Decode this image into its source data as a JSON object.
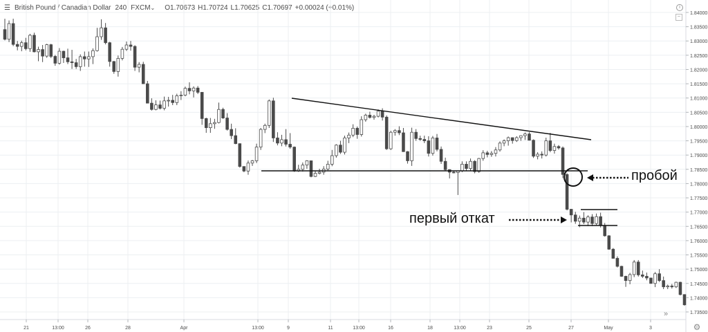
{
  "header": {
    "menu_icon": "menu-icon",
    "symbol": "British Pound / Canadian Dollar",
    "interval": "240",
    "exchange": "FXCM",
    "dropdown_icon": "chevron-down-icon",
    "open": "O1.70673",
    "high": "H1.70724",
    "low": "L1.70625",
    "close": "C1.70697",
    "change": "+0.00024 (+0.01%)"
  },
  "icons": {
    "info": "info-icon",
    "collapse": "collapse-icon",
    "scroll": "scroll-right-icon",
    "settings": "gear-icon"
  },
  "annotations": {
    "breakout": "пробой",
    "first_pullback": "первый откат"
  },
  "colors": {
    "bull": "#ffffff",
    "bear": "#4a4a4a",
    "wick": "#4a4a4a",
    "grid": "#eceff2",
    "trendline": "#111111"
  },
  "chart_data": {
    "type": "candlestick",
    "ylim": [
      1.725,
      1.8425
    ],
    "y_ticks": [
      "1.84000",
      "1.83500",
      "1.83000",
      "1.82500",
      "1.82000",
      "1.81500",
      "1.81000",
      "1.80500",
      "1.80000",
      "1.79500",
      "1.79000",
      "1.78500",
      "1.78000",
      "1.77500",
      "1.77000",
      "1.76500",
      "1.76000",
      "1.75500",
      "1.75000",
      "1.74500",
      "1.74000",
      "1.73500"
    ],
    "x_ticks": [
      "21",
      "13:00",
      "26",
      "28",
      "Apr",
      "13:00",
      "9",
      "11",
      "13:00",
      "16",
      "18",
      "13:00",
      "23",
      "25",
      "27",
      "May",
      "3"
    ],
    "candles": [
      [
        1.834,
        1.8378,
        1.8302,
        1.8306
      ],
      [
        1.8306,
        1.8372,
        1.8296,
        1.8361
      ],
      [
        1.8361,
        1.8378,
        1.8282,
        1.8288
      ],
      [
        1.8288,
        1.83,
        1.8267,
        1.8281
      ],
      [
        1.8281,
        1.8301,
        1.8264,
        1.8294
      ],
      [
        1.8294,
        1.8311,
        1.8267,
        1.8273
      ],
      [
        1.8273,
        1.8325,
        1.8262,
        1.832
      ],
      [
        1.832,
        1.8329,
        1.826,
        1.8262
      ],
      [
        1.8262,
        1.828,
        1.8229,
        1.827
      ],
      [
        1.827,
        1.8286,
        1.8226,
        1.8247
      ],
      [
        1.8247,
        1.829,
        1.8241,
        1.8287
      ],
      [
        1.8287,
        1.829,
        1.824,
        1.8246
      ],
      [
        1.8246,
        1.8251,
        1.8213,
        1.8222
      ],
      [
        1.8222,
        1.8275,
        1.8217,
        1.8264
      ],
      [
        1.8264,
        1.8266,
        1.8223,
        1.8241
      ],
      [
        1.8241,
        1.8273,
        1.8219,
        1.8227
      ],
      [
        1.8227,
        1.8269,
        1.8202,
        1.8224
      ],
      [
        1.8224,
        1.8237,
        1.8202,
        1.821
      ],
      [
        1.821,
        1.8253,
        1.8195,
        1.8245
      ],
      [
        1.8245,
        1.8263,
        1.821,
        1.8237
      ],
      [
        1.8237,
        1.8263,
        1.8209,
        1.8245
      ],
      [
        1.8245,
        1.8274,
        1.8219,
        1.8266
      ],
      [
        1.8266,
        1.8346,
        1.8263,
        1.8315
      ],
      [
        1.8315,
        1.8376,
        1.8304,
        1.8346
      ],
      [
        1.8346,
        1.8363,
        1.8288,
        1.8294
      ],
      [
        1.8294,
        1.8297,
        1.821,
        1.8228
      ],
      [
        1.8228,
        1.823,
        1.8185,
        1.8193
      ],
      [
        1.8193,
        1.8249,
        1.8175,
        1.8239
      ],
      [
        1.8239,
        1.8279,
        1.8232,
        1.8271
      ],
      [
        1.8271,
        1.8298,
        1.8265,
        1.8286
      ],
      [
        1.8286,
        1.83,
        1.8266,
        1.8281
      ],
      [
        1.8281,
        1.8285,
        1.8195,
        1.8208
      ],
      [
        1.8208,
        1.8226,
        1.819,
        1.8218
      ],
      [
        1.8218,
        1.8227,
        1.8149,
        1.815
      ],
      [
        1.815,
        1.816,
        1.8082,
        1.8082
      ],
      [
        1.8082,
        1.8099,
        1.8056,
        1.806
      ],
      [
        1.806,
        1.8092,
        1.8057,
        1.8076
      ],
      [
        1.8076,
        1.8091,
        1.806,
        1.8064
      ],
      [
        1.8064,
        1.8105,
        1.8057,
        1.809
      ],
      [
        1.809,
        1.8104,
        1.807,
        1.8092
      ],
      [
        1.8092,
        1.8111,
        1.8075,
        1.8084
      ],
      [
        1.8084,
        1.8115,
        1.8075,
        1.8108
      ],
      [
        1.8108,
        1.8124,
        1.8093,
        1.811
      ],
      [
        1.811,
        1.814,
        1.8106,
        1.8134
      ],
      [
        1.8134,
        1.8155,
        1.8113,
        1.8125
      ],
      [
        1.8125,
        1.8141,
        1.8102,
        1.8135
      ],
      [
        1.8135,
        1.8142,
        1.8114,
        1.812
      ],
      [
        1.812,
        1.812,
        1.8006,
        1.8028
      ],
      [
        1.8028,
        1.8031,
        1.7978,
        1.7996
      ],
      [
        1.7996,
        1.803,
        1.7978,
        1.801
      ],
      [
        1.801,
        1.8027,
        1.7992,
        1.8014
      ],
      [
        1.8014,
        1.8084,
        1.8011,
        1.806
      ],
      [
        1.806,
        1.8066,
        1.8027,
        1.803
      ],
      [
        1.803,
        1.8047,
        1.7986,
        1.799
      ],
      [
        1.799,
        1.801,
        1.7956,
        1.7968
      ],
      [
        1.7968,
        1.7994,
        1.7938,
        1.794
      ],
      [
        1.794,
        1.7941,
        1.7856,
        1.786
      ],
      [
        1.786,
        1.786,
        1.784,
        1.7844
      ],
      [
        1.7844,
        1.7881,
        1.7831,
        1.7872
      ],
      [
        1.7872,
        1.7883,
        1.7862,
        1.788
      ],
      [
        1.788,
        1.794,
        1.7872,
        1.7928
      ],
      [
        1.7928,
        1.7995,
        1.7918,
        1.799
      ],
      [
        1.799,
        1.801,
        1.7977,
        1.8004
      ],
      [
        1.8004,
        1.8095,
        1.7995,
        1.809
      ],
      [
        1.809,
        1.8101,
        1.7946,
        1.796
      ],
      [
        1.796,
        1.798,
        1.7934,
        1.7942
      ],
      [
        1.7942,
        1.7971,
        1.7931,
        1.7954
      ],
      [
        1.7954,
        1.7991,
        1.793,
        1.7938
      ],
      [
        1.7938,
        1.7977,
        1.7922,
        1.7928
      ],
      [
        1.7928,
        1.793,
        1.7841,
        1.7844
      ],
      [
        1.7844,
        1.7866,
        1.7841,
        1.785
      ],
      [
        1.785,
        1.7874,
        1.7842,
        1.7865
      ],
      [
        1.7865,
        1.7882,
        1.7852,
        1.788
      ],
      [
        1.788,
        1.7879,
        1.7822,
        1.7825
      ],
      [
        1.7825,
        1.7844,
        1.7823,
        1.7836
      ],
      [
        1.7836,
        1.7852,
        1.7832,
        1.784
      ],
      [
        1.784,
        1.7861,
        1.7831,
        1.7851
      ],
      [
        1.7851,
        1.788,
        1.7846,
        1.7868
      ],
      [
        1.7868,
        1.7918,
        1.7861,
        1.7898
      ],
      [
        1.7898,
        1.7938,
        1.7891,
        1.7935
      ],
      [
        1.7935,
        1.795,
        1.7904,
        1.791
      ],
      [
        1.791,
        1.7968,
        1.7902,
        1.796
      ],
      [
        1.796,
        1.7979,
        1.7942,
        1.797
      ],
      [
        1.797,
        1.8008,
        1.7963,
        1.7994
      ],
      [
        1.7994,
        1.8,
        1.7957,
        1.7972
      ],
      [
        1.7972,
        1.8036,
        1.7965,
        1.8024
      ],
      [
        1.8024,
        1.8045,
        1.8017,
        1.804
      ],
      [
        1.804,
        1.8052,
        1.8028,
        1.8032
      ],
      [
        1.8032,
        1.8041,
        1.8024,
        1.8036
      ],
      [
        1.8036,
        1.806,
        1.8032,
        1.8054
      ],
      [
        1.8054,
        1.8064,
        1.8021,
        1.8033
      ],
      [
        1.8033,
        1.8039,
        1.7918,
        1.7922
      ],
      [
        1.7922,
        1.7985,
        1.7918,
        1.798
      ],
      [
        1.798,
        1.7991,
        1.7968,
        1.7986
      ],
      [
        1.7986,
        1.8001,
        1.797,
        1.7978
      ],
      [
        1.7978,
        1.7995,
        1.7911,
        1.7912
      ],
      [
        1.7912,
        1.7914,
        1.787,
        1.788
      ],
      [
        1.788,
        1.7996,
        1.7862,
        1.798
      ],
      [
        1.798,
        1.7991,
        1.795,
        1.7958
      ],
      [
        1.7958,
        1.7968,
        1.795,
        1.7955
      ],
      [
        1.7955,
        1.7968,
        1.7942,
        1.795
      ],
      [
        1.795,
        1.7966,
        1.7895,
        1.7906
      ],
      [
        1.7906,
        1.7967,
        1.7898,
        1.796
      ],
      [
        1.796,
        1.7974,
        1.7913,
        1.792
      ],
      [
        1.792,
        1.793,
        1.7869,
        1.7878
      ],
      [
        1.7878,
        1.7891,
        1.7845,
        1.7849
      ],
      [
        1.7849,
        1.785,
        1.7818,
        1.784
      ],
      [
        1.784,
        1.7845,
        1.7836,
        1.7839
      ],
      [
        1.7839,
        1.7842,
        1.776,
        1.7845
      ],
      [
        1.7845,
        1.7878,
        1.784,
        1.7868
      ],
      [
        1.7868,
        1.7878,
        1.7844,
        1.7853
      ],
      [
        1.7853,
        1.7888,
        1.7845,
        1.7878
      ],
      [
        1.7878,
        1.7882,
        1.7836,
        1.7842
      ],
      [
        1.7842,
        1.789,
        1.7838,
        1.7888
      ],
      [
        1.7888,
        1.7917,
        1.788,
        1.7908
      ],
      [
        1.7908,
        1.7915,
        1.7892,
        1.7902
      ],
      [
        1.7902,
        1.7914,
        1.7894,
        1.7906
      ],
      [
        1.7906,
        1.7928,
        1.7895,
        1.7918
      ],
      [
        1.7918,
        1.7948,
        1.7912,
        1.7942
      ],
      [
        1.7942,
        1.7955,
        1.7931,
        1.795
      ],
      [
        1.795,
        1.7965,
        1.7933,
        1.7961
      ],
      [
        1.7961,
        1.7962,
        1.794,
        1.7951
      ],
      [
        1.7951,
        1.7966,
        1.7946,
        1.7961
      ],
      [
        1.7961,
        1.7969,
        1.795,
        1.7968
      ],
      [
        1.7968,
        1.7979,
        1.7953,
        1.7974
      ],
      [
        1.7974,
        1.798,
        1.7951,
        1.7952
      ],
      [
        1.7952,
        1.7955,
        1.789,
        1.7896
      ],
      [
        1.7896,
        1.791,
        1.7885,
        1.7903
      ],
      [
        1.7903,
        1.7913,
        1.7888,
        1.79
      ],
      [
        1.79,
        1.7961,
        1.7895,
        1.795
      ],
      [
        1.795,
        1.7978,
        1.791,
        1.7916
      ],
      [
        1.7916,
        1.794,
        1.7905,
        1.793
      ],
      [
        1.793,
        1.7935,
        1.7919,
        1.7925
      ],
      [
        1.7925,
        1.793,
        1.7819,
        1.7832
      ],
      [
        1.7832,
        1.7836,
        1.7706,
        1.771
      ],
      [
        1.771,
        1.7711,
        1.7664,
        1.769
      ],
      [
        1.769,
        1.7701,
        1.7659,
        1.7668
      ],
      [
        1.7668,
        1.7688,
        1.7647,
        1.7679
      ],
      [
        1.7679,
        1.77,
        1.7658,
        1.7665
      ],
      [
        1.7665,
        1.7689,
        1.7651,
        1.7683
      ],
      [
        1.7683,
        1.7693,
        1.7651,
        1.766
      ],
      [
        1.766,
        1.7695,
        1.7655,
        1.7684
      ],
      [
        1.7684,
        1.7698,
        1.7646,
        1.7653
      ],
      [
        1.7653,
        1.7662,
        1.7614,
        1.7617
      ],
      [
        1.7617,
        1.7619,
        1.7568,
        1.757
      ],
      [
        1.757,
        1.7574,
        1.7537,
        1.7538
      ],
      [
        1.7538,
        1.7545,
        1.7506,
        1.751
      ],
      [
        1.751,
        1.7512,
        1.7473,
        1.7475
      ],
      [
        1.7475,
        1.7477,
        1.7438,
        1.746
      ],
      [
        1.746,
        1.7487,
        1.7447,
        1.7481
      ],
      [
        1.7481,
        1.7532,
        1.7472,
        1.7525
      ],
      [
        1.7525,
        1.7532,
        1.7474,
        1.748
      ],
      [
        1.748,
        1.7495,
        1.7469,
        1.7475
      ],
      [
        1.7475,
        1.7488,
        1.7461,
        1.7469
      ],
      [
        1.7469,
        1.747,
        1.7449,
        1.745
      ],
      [
        1.745,
        1.749,
        1.7437,
        1.7484
      ],
      [
        1.7484,
        1.75,
        1.7455,
        1.746
      ],
      [
        1.746,
        1.7474,
        1.743,
        1.7438
      ],
      [
        1.7438,
        1.7446,
        1.743,
        1.7441
      ],
      [
        1.7441,
        1.7448,
        1.7432,
        1.7438
      ],
      [
        1.7438,
        1.7456,
        1.7434,
        1.7454
      ],
      [
        1.7454,
        1.7456,
        1.7408,
        1.7411
      ],
      [
        1.7411,
        1.7412,
        1.7372,
        1.7375
      ]
    ]
  }
}
